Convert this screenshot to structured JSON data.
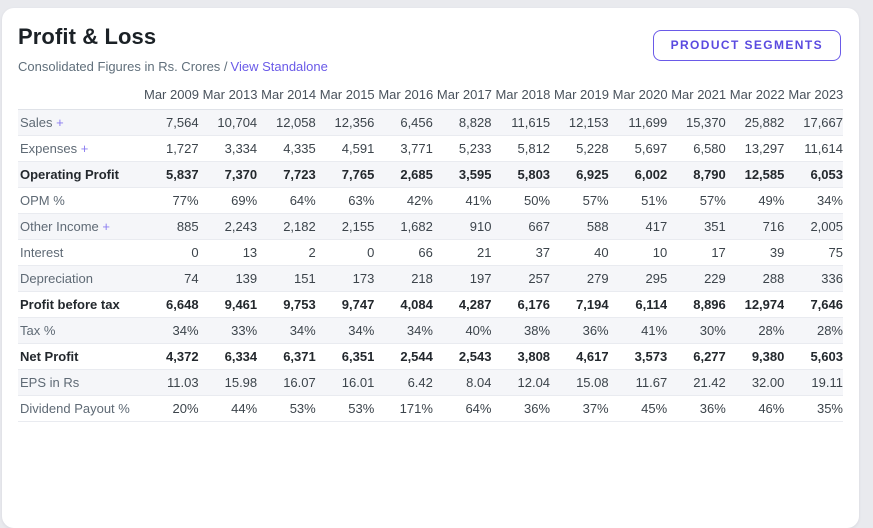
{
  "header": {
    "title": "Profit & Loss",
    "subtitle": "Consolidated Figures in Rs. Crores /",
    "subtitle_link": "View Standalone",
    "segments_button": "PRODUCT SEGMENTS"
  },
  "colors": {
    "accent_purple": "#6a5ae8",
    "page_background": "#e9eaee",
    "card_background": "#ffffff",
    "row_stripe": "#f5f6f9",
    "row_border": "#e9ebf0"
  },
  "table": {
    "columns": [
      "Mar 2009",
      "Mar 2013",
      "Mar 2014",
      "Mar 2015",
      "Mar 2016",
      "Mar 2017",
      "Mar 2018",
      "Mar 2019",
      "Mar 2020",
      "Mar 2021",
      "Mar 2022",
      "Mar 2023"
    ],
    "rows": [
      {
        "label": "Sales",
        "expandable": true,
        "bold": false,
        "values": [
          "7,564",
          "10,704",
          "12,058",
          "12,356",
          "6,456",
          "8,828",
          "11,615",
          "12,153",
          "11,699",
          "15,370",
          "25,882",
          "17,667"
        ]
      },
      {
        "label": "Expenses",
        "expandable": true,
        "bold": false,
        "values": [
          "1,727",
          "3,334",
          "4,335",
          "4,591",
          "3,771",
          "5,233",
          "5,812",
          "5,228",
          "5,697",
          "6,580",
          "13,297",
          "11,614"
        ]
      },
      {
        "label": "Operating Profit",
        "expandable": false,
        "bold": true,
        "values": [
          "5,837",
          "7,370",
          "7,723",
          "7,765",
          "2,685",
          "3,595",
          "5,803",
          "6,925",
          "6,002",
          "8,790",
          "12,585",
          "6,053"
        ]
      },
      {
        "label": "OPM %",
        "expandable": false,
        "bold": false,
        "values": [
          "77%",
          "69%",
          "64%",
          "63%",
          "42%",
          "41%",
          "50%",
          "57%",
          "51%",
          "57%",
          "49%",
          "34%"
        ]
      },
      {
        "label": "Other Income",
        "expandable": true,
        "bold": false,
        "values": [
          "885",
          "2,243",
          "2,182",
          "2,155",
          "1,682",
          "910",
          "667",
          "588",
          "417",
          "351",
          "716",
          "2,005"
        ]
      },
      {
        "label": "Interest",
        "expandable": false,
        "bold": false,
        "values": [
          "0",
          "13",
          "2",
          "0",
          "66",
          "21",
          "37",
          "40",
          "10",
          "17",
          "39",
          "75"
        ]
      },
      {
        "label": "Depreciation",
        "expandable": false,
        "bold": false,
        "values": [
          "74",
          "139",
          "151",
          "173",
          "218",
          "197",
          "257",
          "279",
          "295",
          "229",
          "288",
          "336"
        ]
      },
      {
        "label": "Profit before tax",
        "expandable": false,
        "bold": true,
        "values": [
          "6,648",
          "9,461",
          "9,753",
          "9,747",
          "4,084",
          "4,287",
          "6,176",
          "7,194",
          "6,114",
          "8,896",
          "12,974",
          "7,646"
        ]
      },
      {
        "label": "Tax %",
        "expandable": false,
        "bold": false,
        "values": [
          "34%",
          "33%",
          "34%",
          "34%",
          "34%",
          "40%",
          "38%",
          "36%",
          "41%",
          "30%",
          "28%",
          "28%"
        ]
      },
      {
        "label": "Net Profit",
        "expandable": false,
        "bold": true,
        "values": [
          "4,372",
          "6,334",
          "6,371",
          "6,351",
          "2,544",
          "2,543",
          "3,808",
          "4,617",
          "3,573",
          "6,277",
          "9,380",
          "5,603"
        ]
      },
      {
        "label": "EPS in Rs",
        "expandable": false,
        "bold": false,
        "values": [
          "11.03",
          "15.98",
          "16.07",
          "16.01",
          "6.42",
          "8.04",
          "12.04",
          "15.08",
          "11.67",
          "21.42",
          "32.00",
          "19.11"
        ]
      },
      {
        "label": "Dividend Payout %",
        "expandable": false,
        "bold": false,
        "values": [
          "20%",
          "44%",
          "53%",
          "53%",
          "171%",
          "64%",
          "36%",
          "37%",
          "45%",
          "36%",
          "46%",
          "35%"
        ]
      }
    ]
  }
}
